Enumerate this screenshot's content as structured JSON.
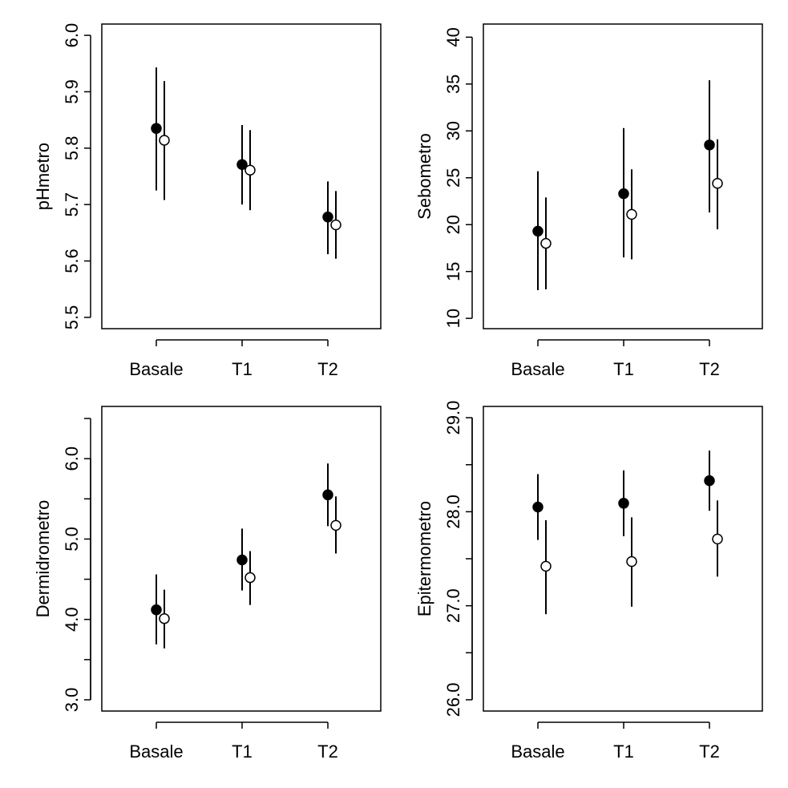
{
  "chart_data": [
    {
      "type": "errorbar",
      "ylabel": "pHmetro",
      "categories": [
        "Basale",
        "T1",
        "T2"
      ],
      "ylim": [
        5.48,
        6.02
      ],
      "yticks": [
        5.5,
        5.6,
        5.7,
        5.8,
        5.9,
        {
          "value": 6,
          "label": "6.0"
        }
      ],
      "series": [
        {
          "color": "#000000",
          "values": [
            5.835,
            5.771,
            5.678
          ],
          "lower": [
            5.725,
            5.7,
            5.612
          ],
          "upper": [
            5.943,
            5.841,
            5.741
          ]
        },
        {
          "color": "#ffffff",
          "values": [
            5.814,
            5.761,
            5.664
          ],
          "lower": [
            5.708,
            5.69,
            5.604
          ],
          "upper": [
            5.919,
            5.832,
            5.724
          ]
        }
      ]
    },
    {
      "type": "errorbar",
      "ylabel": "Sebometro",
      "categories": [
        "Basale",
        "T1",
        "T2"
      ],
      "ylim": [
        8.9,
        41.4
      ],
      "yticks": [
        10,
        15,
        20,
        25,
        30,
        35,
        40
      ],
      "series": [
        {
          "color": "#000000",
          "values": [
            19.3,
            23.3,
            28.5
          ],
          "lower": [
            13.0,
            16.5,
            21.3
          ],
          "upper": [
            25.7,
            30.3,
            35.4
          ]
        },
        {
          "color": "#ffffff",
          "values": [
            18.0,
            21.1,
            24.4
          ],
          "lower": [
            13.1,
            16.3,
            19.5
          ],
          "upper": [
            22.9,
            25.9,
            29.1
          ]
        }
      ]
    },
    {
      "type": "errorbar",
      "ylabel": "Dermidrometro",
      "categories": [
        "Basale",
        "T1",
        "T2"
      ],
      "ylim": [
        2.86,
        6.65
      ],
      "yticks": [
        {
          "value": 3,
          "label": "3.0"
        },
        {
          "value": 4,
          "label": "4.0"
        },
        {
          "value": 5,
          "label": "5.0"
        },
        {
          "value": 6,
          "label": "6.0"
        }
      ],
      "yminorticks": [
        3.5,
        4.5,
        5.5,
        6.5
      ],
      "series": [
        {
          "color": "#000000",
          "values": [
            4.12,
            4.74,
            5.55
          ],
          "lower": [
            3.69,
            4.36,
            5.16
          ],
          "upper": [
            4.56,
            5.13,
            5.94
          ]
        },
        {
          "color": "#ffffff",
          "values": [
            4.01,
            4.52,
            5.17
          ],
          "lower": [
            3.64,
            4.18,
            4.82
          ],
          "upper": [
            4.37,
            4.85,
            5.53
          ]
        }
      ]
    },
    {
      "type": "errorbar",
      "ylabel": "Epitermometro",
      "categories": [
        "Basale",
        "T1",
        "T2"
      ],
      "ylim": [
        25.88,
        29.12
      ],
      "yticks": [
        {
          "value": 26,
          "label": "26.0"
        },
        {
          "value": 27,
          "label": "27.0"
        },
        {
          "value": 28,
          "label": "28.0"
        },
        {
          "value": 29,
          "label": "29.0"
        }
      ],
      "yminorticks": [
        26.5,
        27.5,
        28.5
      ],
      "series": [
        {
          "color": "#000000",
          "values": [
            28.05,
            28.09,
            28.33
          ],
          "lower": [
            27.7,
            27.74,
            28.01
          ],
          "upper": [
            28.4,
            28.44,
            28.65
          ]
        },
        {
          "color": "#ffffff",
          "values": [
            27.42,
            27.47,
            27.71
          ],
          "lower": [
            26.91,
            26.99,
            27.31
          ],
          "upper": [
            27.91,
            27.94,
            28.12
          ]
        }
      ]
    }
  ]
}
